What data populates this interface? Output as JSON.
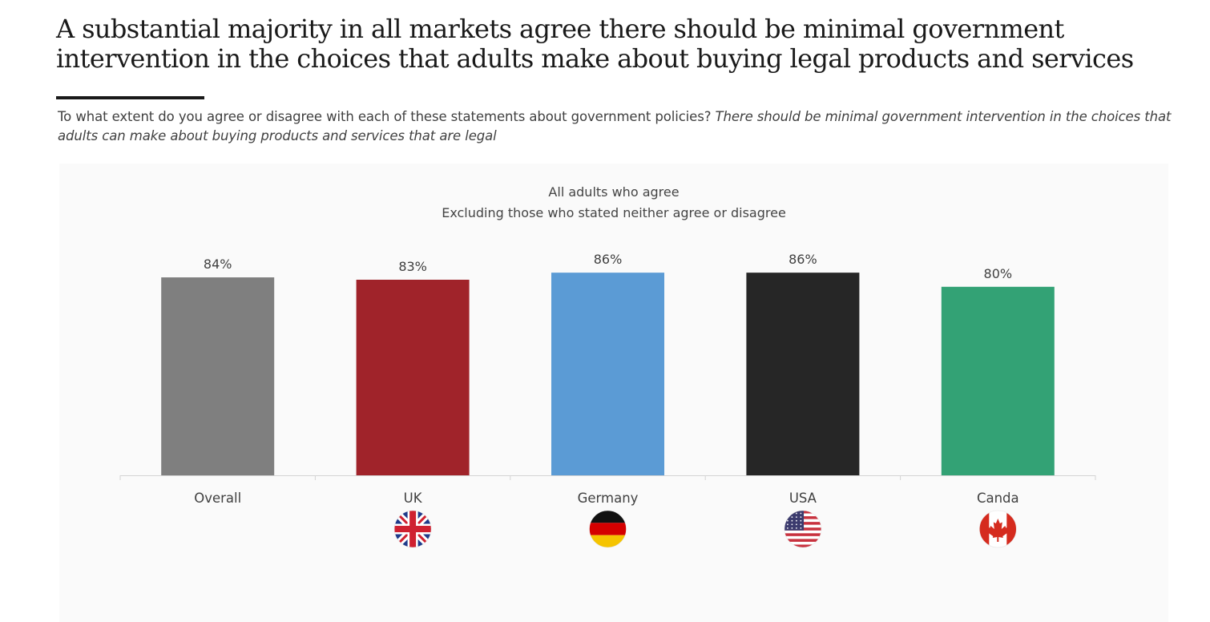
{
  "header": {
    "title": "A substantial majority in all markets agree there should be minimal government intervention in the choices that adults make about buying legal products and services",
    "question_prefix": "To what extent do you agree or disagree with each of these statements about government policies?",
    "question_statement": "There should be minimal government intervention in the choices that adults can make about buying products and services that are legal"
  },
  "chart_data": {
    "type": "bar",
    "title": "All adults who agree",
    "subtitle": "Excluding those who stated neither agree or disagree",
    "categories": [
      "Overall",
      "UK",
      "Germany",
      "USA",
      "Canda"
    ],
    "values": [
      84,
      83,
      86,
      86,
      80
    ],
    "value_labels": [
      "84%",
      "83%",
      "86%",
      "86%",
      "80%"
    ],
    "colors": [
      "#7f7f7f",
      "#a0232a",
      "#5b9bd5",
      "#262626",
      "#33a275"
    ],
    "flags": [
      "",
      "uk-flag-icon",
      "germany-flag-icon",
      "usa-flag-icon",
      "canada-flag-icon"
    ],
    "ylim": [
      0,
      100
    ],
    "xlabel": "",
    "ylabel": "",
    "grid": false
  }
}
